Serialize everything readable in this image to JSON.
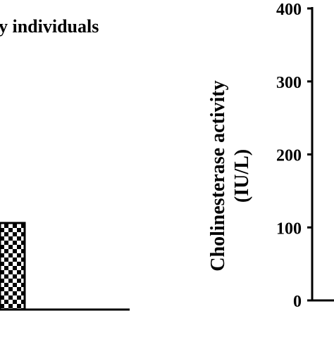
{
  "chart_data": [
    {
      "type": "bar",
      "title": "y individuals",
      "categories": [
        ""
      ],
      "values": [
        115
      ],
      "ylim": [
        0,
        400
      ],
      "xlabel": "",
      "ylabel": "",
      "grid": false,
      "bar_fill": "checkerboard",
      "colors": {
        "ink": "#000000",
        "background": "#ffffff"
      }
    },
    {
      "type": "bar",
      "title": "",
      "categories": [],
      "values": [],
      "ylim": [
        0,
        400
      ],
      "yticks": [
        "0",
        "100",
        "200",
        "300",
        "400"
      ],
      "xlabel": "",
      "ylabel_line1": "Cholinesterase activity",
      "ylabel_line2": "(IU/L)",
      "grid": false
    }
  ]
}
